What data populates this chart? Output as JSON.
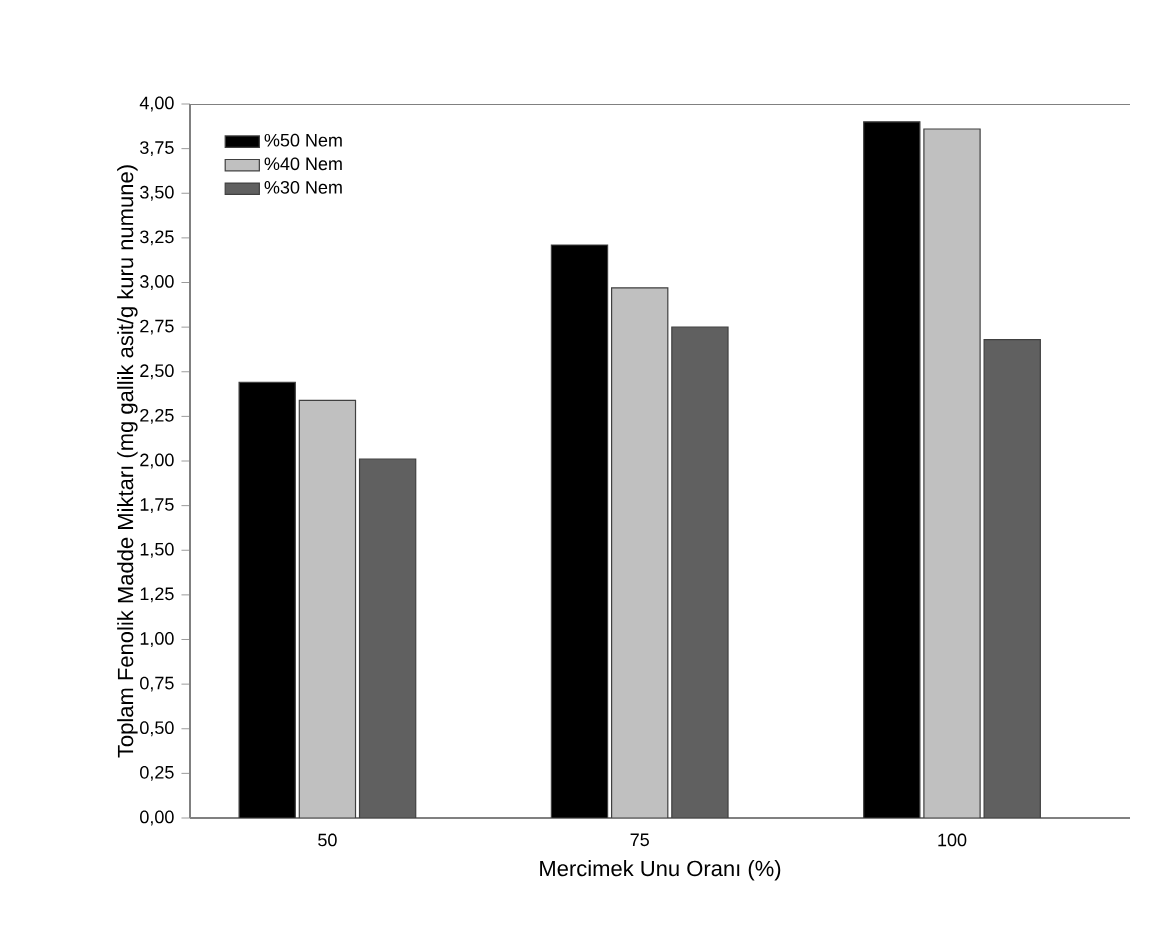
{
  "chart_data": {
    "type": "bar",
    "xlabel": "Mercimek Unu Oranı (%)",
    "ylabel": "Toplam Fenolik Madde Miktarı (mg gallik asit/g kuru numune)",
    "categories": [
      "50",
      "75",
      "100"
    ],
    "series": [
      {
        "name": "%50 Nem",
        "color": "#000000",
        "values": [
          2.44,
          3.21,
          3.9
        ]
      },
      {
        "name": "%40 Nem",
        "color": "#c0c0c0",
        "values": [
          2.34,
          2.97,
          3.86
        ]
      },
      {
        "name": "%30 Nem",
        "color": "#606060",
        "values": [
          2.01,
          2.75,
          2.68
        ]
      }
    ],
    "ylim": [
      0,
      4
    ],
    "yticks": [
      {
        "value": 0,
        "label": "0,00"
      },
      {
        "value": 0.25,
        "label": "0,25"
      },
      {
        "value": 0.5,
        "label": "0,50"
      },
      {
        "value": 0.75,
        "label": "0,75"
      },
      {
        "value": 1,
        "label": "1,00"
      },
      {
        "value": 1.25,
        "label": "1,25"
      },
      {
        "value": 1.5,
        "label": "1,50"
      },
      {
        "value": 1.75,
        "label": "1,75"
      },
      {
        "value": 2,
        "label": "2,00"
      },
      {
        "value": 2.25,
        "label": "2,25"
      },
      {
        "value": 2.5,
        "label": "2,50"
      },
      {
        "value": 2.75,
        "label": "2,75"
      },
      {
        "value": 3,
        "label": "3,00"
      },
      {
        "value": 3.25,
        "label": "3,25"
      },
      {
        "value": 3.5,
        "label": "3,50"
      },
      {
        "value": 3.75,
        "label": "3,75"
      },
      {
        "value": 4,
        "label": "4,00"
      }
    ],
    "grid": false,
    "legend": "top left"
  }
}
